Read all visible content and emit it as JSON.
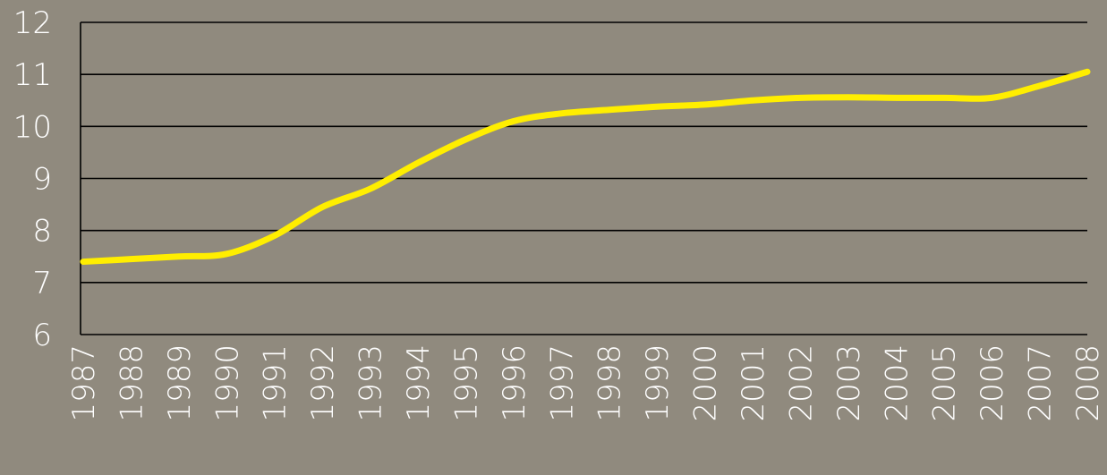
{
  "chart_data": {
    "type": "line",
    "title": "",
    "xlabel": "",
    "ylabel": "",
    "ylim": [
      6,
      12
    ],
    "yticks": [
      6,
      7,
      8,
      9,
      10,
      11,
      12
    ],
    "grid": true,
    "categories": [
      "1987",
      "1988",
      "1989",
      "1990",
      "1991",
      "1992",
      "1993",
      "1994",
      "1995",
      "1996",
      "1997",
      "1998",
      "1999",
      "2000",
      "2001",
      "2002",
      "2003",
      "2004",
      "2005",
      "2006",
      "2007",
      "2008"
    ],
    "series": [
      {
        "name": "",
        "color": "#ffee00",
        "values": [
          7.4,
          7.45,
          7.5,
          7.55,
          7.9,
          8.45,
          8.8,
          9.3,
          9.75,
          10.1,
          10.25,
          10.32,
          10.38,
          10.42,
          10.5,
          10.55,
          10.56,
          10.55,
          10.55,
          10.55,
          10.78,
          11.05
        ]
      }
    ]
  },
  "colors": {
    "background": "#908a7e",
    "grid": "#000000",
    "text": "#ffffff"
  }
}
